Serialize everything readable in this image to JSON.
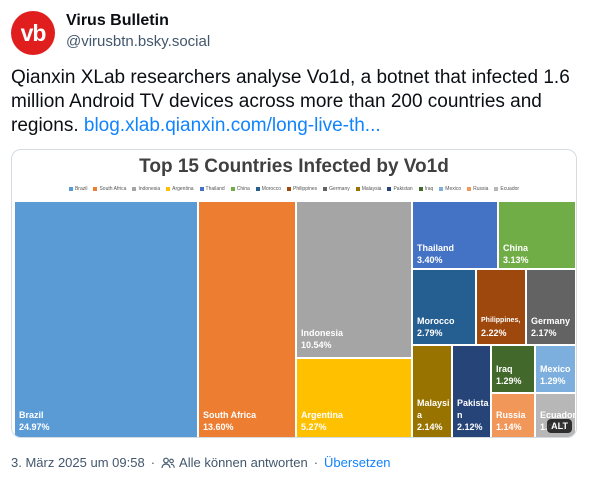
{
  "post": {
    "avatar_text": "vb",
    "author_name": "Virus Bulletin",
    "author_handle": "@virusbtn.bsky.social",
    "text": "Qianxin XLab researchers analyse Vo1d, a botnet that infected 1.6 million Android TV devices across more than 200 countries and regions. ",
    "link_text": "blog.xlab.qianxin.com/long-live-th...",
    "timestamp": "3. März 2025 um 09:58",
    "separator": "·",
    "reply_setting": "Alle können antworten",
    "translate_label": "Übersetzen",
    "alt_badge": "ALT"
  },
  "chart_data": {
    "type": "treemap",
    "title": "Top 15 Countries Infected by Vo1d",
    "legend": [
      "Brazil",
      "South Africa",
      "Indonesia",
      "Argentina",
      "Thailand",
      "China",
      "Morocco",
      "Philippines",
      "Germany",
      "Malaysia",
      "Pakistan",
      "Iraq",
      "Mexico",
      "Russia",
      "Ecuador"
    ],
    "items": [
      {
        "name": "Brazil",
        "value_label": "24.97%",
        "value": 24.97,
        "color": "#5b9bd5"
      },
      {
        "name": "South Africa",
        "value_label": "13.60%",
        "value": 13.6,
        "color": "#ed7d31"
      },
      {
        "name": "Indonesia",
        "value_label": "10.54%",
        "value": 10.54,
        "color": "#a5a5a5"
      },
      {
        "name": "Argentina",
        "value_label": "5.27%",
        "value": 5.27,
        "color": "#ffc000"
      },
      {
        "name": "Thailand",
        "value_label": "3.40%",
        "value": 3.4,
        "color": "#4472c4"
      },
      {
        "name": "China",
        "value_label": "3.13%",
        "value": 3.13,
        "color": "#70ad47"
      },
      {
        "name": "Morocco",
        "value_label": "2.79%",
        "value": 2.79,
        "color": "#255e91"
      },
      {
        "name": "Philippines,",
        "value_label": "2.22%",
        "value": 2.22,
        "color": "#9e480e"
      },
      {
        "name": "Germany",
        "value_label": "2.17%",
        "value": 2.17,
        "color": "#636363"
      },
      {
        "name": "Malaysi\na",
        "value_label": "2.14%",
        "value": 2.14,
        "color": "#997300"
      },
      {
        "name": "Pakista\nn",
        "value_label": "2.12%",
        "value": 2.12,
        "color": "#264478"
      },
      {
        "name": "Iraq",
        "value_label": "1.29%",
        "value": 1.29,
        "color": "#43682b"
      },
      {
        "name": "Mexico",
        "value_label": "1.29%",
        "value": 1.29,
        "color": "#7cafdd"
      },
      {
        "name": "Russia",
        "value_label": "1.14%",
        "value": 1.14,
        "color": "#f1975a"
      },
      {
        "name": "Ecuador",
        "value_label": "1.04%",
        "value": 1.04,
        "color": "#b7b7b7"
      }
    ]
  }
}
